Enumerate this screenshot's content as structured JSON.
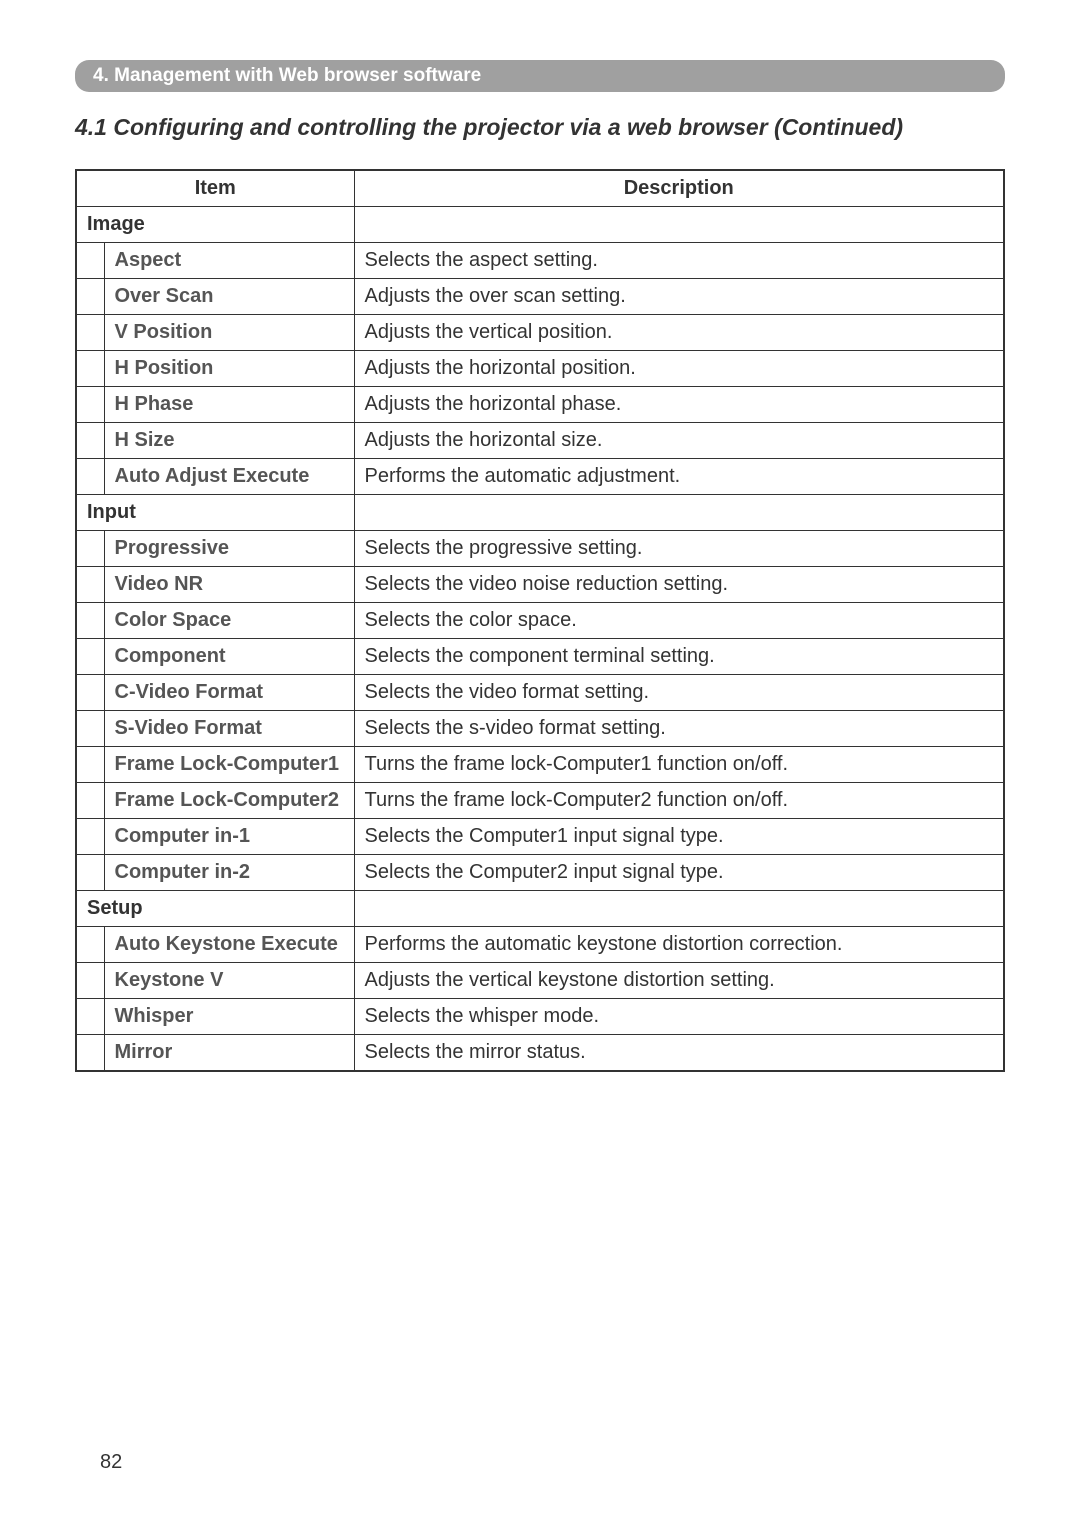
{
  "chapter_banner": "4. Management with Web browser software",
  "section_title": "4.1 Configuring and controlling the projector via a web browser (Continued)",
  "table": {
    "header_item": "Item",
    "header_desc": "Description",
    "groups": [
      {
        "label": "Image",
        "rows": [
          {
            "item": "Aspect",
            "desc": "Selects the aspect setting."
          },
          {
            "item": "Over Scan",
            "desc": "Adjusts the over scan setting."
          },
          {
            "item": "V Position",
            "desc": "Adjusts the vertical position."
          },
          {
            "item": "H Position",
            "desc": "Adjusts the horizontal position."
          },
          {
            "item": "H Phase",
            "desc": "Adjusts the horizontal phase."
          },
          {
            "item": "H Size",
            "desc": "Adjusts the horizontal size."
          },
          {
            "item": "Auto Adjust Execute",
            "desc": "Performs the automatic adjustment."
          }
        ]
      },
      {
        "label": "Input",
        "rows": [
          {
            "item": "Progressive",
            "desc": "Selects the progressive setting."
          },
          {
            "item": "Video NR",
            "desc": "Selects the video noise reduction setting."
          },
          {
            "item": "Color Space",
            "desc": "Selects the color space."
          },
          {
            "item": "Component",
            "desc": "Selects the component terminal setting."
          },
          {
            "item": "C-Video Format",
            "desc": "Selects the video format setting."
          },
          {
            "item": "S-Video Format",
            "desc": "Selects the s-video format setting."
          },
          {
            "item": "Frame Lock-Computer1",
            "desc": "Turns the frame lock-Computer1 function on/off."
          },
          {
            "item": "Frame Lock-Computer2",
            "desc": "Turns the frame lock-Computer2 function on/off."
          },
          {
            "item": "Computer in-1",
            "desc": "Selects the Computer1 input signal type."
          },
          {
            "item": "Computer in-2",
            "desc": "Selects the Computer2 input signal type."
          }
        ]
      },
      {
        "label": "Setup",
        "rows": [
          {
            "item": "Auto Keystone Execute",
            "desc": "Performs the automatic keystone distortion correction."
          },
          {
            "item": "Keystone V",
            "desc": "Adjusts the vertical keystone distortion setting."
          },
          {
            "item": "Whisper",
            "desc": "Selects the whisper mode."
          },
          {
            "item": "Mirror",
            "desc": "Selects the mirror status."
          }
        ]
      }
    ]
  },
  "page_number": "82"
}
